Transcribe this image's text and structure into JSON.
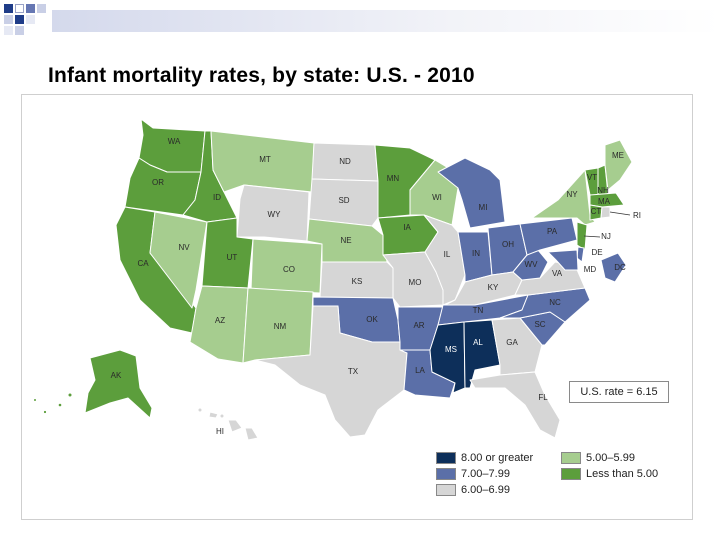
{
  "title": "Infant mortality rates, by state: U.S. - 2010",
  "colors": {
    "band_8plus": "#0d2f5a",
    "band_7": "#5b6fa8",
    "band_6": "#d6d6d6",
    "band_5": "#a6cd8f",
    "band_lt5": "#5c9e3c"
  },
  "us_rate": "U.S. rate = 6.15",
  "legend": [
    {
      "label": "8.00 or greater",
      "band": "band_8plus"
    },
    {
      "label": "7.00–7.99",
      "band": "band_7"
    },
    {
      "label": "6.00–6.99",
      "band": "band_6"
    },
    {
      "label": "5.00–5.99",
      "band": "band_5"
    },
    {
      "label": "Less than 5.00",
      "band": "band_lt5"
    }
  ],
  "states": [
    {
      "abbr": "WA",
      "band": "band_lt5"
    },
    {
      "abbr": "OR",
      "band": "band_lt5"
    },
    {
      "abbr": "CA",
      "band": "band_lt5"
    },
    {
      "abbr": "ID",
      "band": "band_lt5"
    },
    {
      "abbr": "NV",
      "band": "band_5"
    },
    {
      "abbr": "MT",
      "band": "band_5"
    },
    {
      "abbr": "WY",
      "band": "band_6"
    },
    {
      "abbr": "UT",
      "band": "band_lt5"
    },
    {
      "abbr": "CO",
      "band": "band_5"
    },
    {
      "abbr": "AZ",
      "band": "band_5"
    },
    {
      "abbr": "NM",
      "band": "band_5"
    },
    {
      "abbr": "ND",
      "band": "band_6"
    },
    {
      "abbr": "SD",
      "band": "band_6"
    },
    {
      "abbr": "NE",
      "band": "band_5"
    },
    {
      "abbr": "KS",
      "band": "band_6"
    },
    {
      "abbr": "OK",
      "band": "band_7"
    },
    {
      "abbr": "TX",
      "band": "band_6"
    },
    {
      "abbr": "MN",
      "band": "band_lt5"
    },
    {
      "abbr": "IA",
      "band": "band_lt5"
    },
    {
      "abbr": "MO",
      "band": "band_6"
    },
    {
      "abbr": "AR",
      "band": "band_7"
    },
    {
      "abbr": "LA",
      "band": "band_7"
    },
    {
      "abbr": "WI",
      "band": "band_5"
    },
    {
      "abbr": "IL",
      "band": "band_6"
    },
    {
      "abbr": "MI",
      "band": "band_7"
    },
    {
      "abbr": "IN",
      "band": "band_7"
    },
    {
      "abbr": "OH",
      "band": "band_7"
    },
    {
      "abbr": "KY",
      "band": "band_6"
    },
    {
      "abbr": "TN",
      "band": "band_7"
    },
    {
      "abbr": "MS",
      "band": "band_8plus"
    },
    {
      "abbr": "AL",
      "band": "band_8plus"
    },
    {
      "abbr": "GA",
      "band": "band_6"
    },
    {
      "abbr": "FL",
      "band": "band_6"
    },
    {
      "abbr": "SC",
      "band": "band_7"
    },
    {
      "abbr": "NC",
      "band": "band_7"
    },
    {
      "abbr": "VA",
      "band": "band_6"
    },
    {
      "abbr": "WV",
      "band": "band_7"
    },
    {
      "abbr": "PA",
      "band": "band_7"
    },
    {
      "abbr": "NY",
      "band": "band_5"
    },
    {
      "abbr": "ME",
      "band": "band_5"
    },
    {
      "abbr": "VT",
      "band": "band_lt5"
    },
    {
      "abbr": "NH",
      "band": "band_lt5"
    },
    {
      "abbr": "MA",
      "band": "band_lt5"
    },
    {
      "abbr": "CT",
      "band": "band_lt5"
    },
    {
      "abbr": "RI",
      "band": "band_6"
    },
    {
      "abbr": "NJ",
      "band": "band_lt5"
    },
    {
      "abbr": "DE",
      "band": "band_7"
    },
    {
      "abbr": "MD",
      "band": "band_7"
    },
    {
      "abbr": "DC",
      "band": "band_7"
    },
    {
      "abbr": "AK",
      "band": "band_lt5"
    },
    {
      "abbr": "HI",
      "band": "band_6"
    }
  ]
}
